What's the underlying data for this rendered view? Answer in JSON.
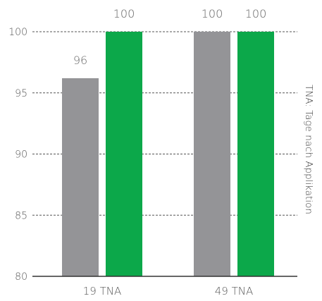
{
  "chart_data": {
    "type": "bar",
    "categories": [
      "19 TNA",
      "49 TNA"
    ],
    "series": [
      {
        "values": [
          96.2,
          100
        ],
        "labels": [
          "96",
          "100"
        ],
        "color": "#949497"
      },
      {
        "values": [
          100,
          100
        ],
        "labels": [
          "100",
          "100"
        ],
        "color": "#0ca84a"
      }
    ],
    "yticks": [
      "80",
      "85",
      "90",
      "95",
      "100"
    ],
    "ylim": [
      80,
      100
    ],
    "grid": "dashed",
    "side_label": "TNA: Tage nach Applikation"
  }
}
